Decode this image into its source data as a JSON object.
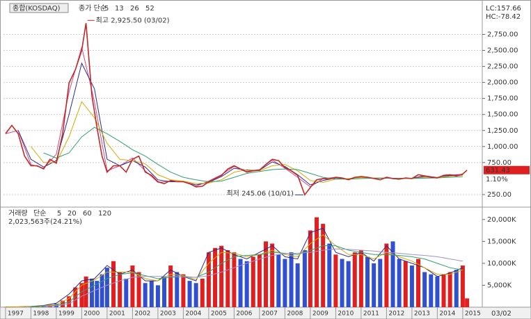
{
  "chart_data": [
    {
      "type": "line",
      "title": "종합(KOSDAQ)",
      "color": "#c02828",
      "lc": "LC:157.66",
      "hc": "HC:-78.42",
      "change": "1.10%",
      "high_label": "최고 2,925.50 (03/02)",
      "low_label": "최저 245.06 (10/01)",
      "x": [
        1997.0,
        1997.25,
        1997.5,
        1997.75,
        1998.0,
        1998.25,
        1998.5,
        1998.75,
        1999.0,
        1999.25,
        1999.5,
        1999.75,
        2000.0,
        2000.17,
        2000.4,
        2000.6,
        2000.8,
        2001.0,
        2001.25,
        2001.5,
        2001.75,
        2002.0,
        2002.25,
        2002.5,
        2002.75,
        2003.0,
        2003.25,
        2003.5,
        2003.75,
        2004.0,
        2004.25,
        2004.5,
        2004.75,
        2005.0,
        2005.25,
        2005.5,
        2005.75,
        2006.0,
        2006.25,
        2006.5,
        2006.75,
        2007.0,
        2007.25,
        2007.5,
        2007.75,
        2008.0,
        2008.25,
        2008.5,
        2008.78,
        2009.0,
        2009.25,
        2009.5,
        2009.75,
        2010.0,
        2010.25,
        2010.5,
        2010.75,
        2011.0,
        2011.25,
        2011.5,
        2011.75,
        2012.0,
        2012.25,
        2012.5,
        2012.75,
        2013.0,
        2013.25,
        2013.5,
        2013.75,
        2014.0,
        2014.25,
        2014.5,
        2014.75,
        2015.0,
        2015.17
      ],
      "values": [
        1200,
        1330,
        1200,
        850,
        700,
        700,
        650,
        800,
        740,
        1200,
        1990,
        2200,
        2500,
        2925.5,
        1800,
        1300,
        850,
        600,
        700,
        700,
        600,
        800,
        850,
        600,
        550,
        450,
        420,
        470,
        450,
        450,
        420,
        370,
        380,
        450,
        500,
        550,
        650,
        700,
        650,
        600,
        620,
        630,
        720,
        800,
        780,
        670,
        620,
        550,
        245.06,
        360,
        480,
        500,
        490,
        520,
        510,
        480,
        520,
        530,
        520,
        500,
        480,
        520,
        500,
        490,
        510,
        500,
        560,
        540,
        520,
        510,
        550,
        560,
        540,
        570,
        631.43
      ],
      "ylim": [
        65,
        3200
      ],
      "yticks": [
        {
          "value": 250,
          "label": "250.00"
        },
        {
          "value": 750,
          "label": "750.00"
        },
        {
          "value": 1000,
          "label": "1,000.00"
        },
        {
          "value": 1250,
          "label": "1,250.00"
        },
        {
          "value": 1500,
          "label": "1,500.00"
        },
        {
          "value": 1750,
          "label": "1,750.00"
        },
        {
          "value": 2000,
          "label": "2,000.00"
        },
        {
          "value": 2250,
          "label": "2,250.00"
        },
        {
          "value": 2500,
          "label": "2,500.00"
        },
        {
          "value": 2750,
          "label": "2,750.00"
        }
      ],
      "grid": true,
      "ma": {
        "label": "종가 단순",
        "x": [
          1997.0,
          1997.5,
          1998.0,
          1998.5,
          1999.0,
          1999.5,
          2000.0,
          2000.5,
          2001.0,
          2001.5,
          2002.0,
          2002.5,
          2003.0,
          2003.5,
          2004.0,
          2004.5,
          2005.0,
          2005.5,
          2006.0,
          2006.5,
          2007.0,
          2007.5,
          2008.0,
          2008.5,
          2009.0,
          2009.5,
          2010.0,
          2010.5,
          2011.0,
          2011.5,
          2012.0,
          2012.5,
          2013.0,
          2013.5,
          2014.0,
          2014.5,
          2015.0
        ],
        "series": [
          {
            "name": "5",
            "color": "#d04888",
            "values": [
              1200,
              1250,
              720,
              660,
              880,
              1850,
              2550,
              1700,
              620,
              700,
              820,
              620,
              440,
              460,
              450,
              380,
              460,
              560,
              690,
              610,
              640,
              790,
              660,
              520,
              370,
              500,
              520,
              490,
              530,
              500,
              510,
              495,
              505,
              545,
              515,
              555,
              565
            ]
          },
          {
            "name": "13",
            "color": "#2a2a90",
            "values": [
              null,
              1250,
              800,
              680,
              780,
              1500,
              2300,
              1900,
              800,
              700,
              780,
              680,
              480,
              450,
              450,
              400,
              440,
              530,
              660,
              630,
              630,
              760,
              690,
              560,
              400,
              470,
              510,
              495,
              525,
              505,
              505,
              500,
              505,
              535,
              520,
              545,
              560
            ]
          },
          {
            "name": "26",
            "color": "#d8a800",
            "values": [
              null,
              null,
              1000,
              750,
              750,
              1150,
              1700,
              1450,
              1050,
              800,
              780,
              730,
              560,
              480,
              460,
              420,
              430,
              480,
              600,
              640,
              620,
              700,
              720,
              620,
              470,
              440,
              490,
              500,
              515,
              510,
              505,
              500,
              500,
              520,
              520,
              535,
              550
            ]
          },
          {
            "name": "52",
            "color": "#30a070",
            "values": [
              null,
              null,
              null,
              900,
              820,
              900,
              1150,
              1300,
              1200,
              1080,
              950,
              850,
              720,
              600,
              520,
              480,
              450,
              460,
              520,
              580,
              610,
              640,
              650,
              640,
              580,
              520,
              490,
              490,
              500,
              505,
              505,
              505,
              500,
              505,
              510,
              520,
              530
            ]
          }
        ]
      }
    },
    {
      "type": "bar",
      "title": "거래량",
      "info": "2,023,563주(24.21%)",
      "cursor_date": "03/02",
      "up_color": "#e02020",
      "down_color": "#3050d0",
      "x": [
        1997.0,
        1997.25,
        1997.5,
        1997.75,
        1998.0,
        1998.25,
        1998.5,
        1998.75,
        1999.0,
        1999.25,
        1999.5,
        1999.75,
        2000.0,
        2000.17,
        2000.4,
        2000.6,
        2000.8,
        2001.0,
        2001.25,
        2001.5,
        2001.75,
        2002.0,
        2002.25,
        2002.5,
        2002.75,
        2003.0,
        2003.25,
        2003.5,
        2003.75,
        2004.0,
        2004.25,
        2004.5,
        2004.75,
        2005.0,
        2005.25,
        2005.5,
        2005.75,
        2006.0,
        2006.25,
        2006.5,
        2006.75,
        2007.0,
        2007.25,
        2007.5,
        2007.75,
        2008.0,
        2008.25,
        2008.5,
        2008.78,
        2009.0,
        2009.25,
        2009.5,
        2009.75,
        2010.0,
        2010.25,
        2010.5,
        2010.75,
        2011.0,
        2011.25,
        2011.5,
        2011.75,
        2012.0,
        2012.25,
        2012.5,
        2012.75,
        2013.0,
        2013.25,
        2013.5,
        2013.75,
        2014.0,
        2014.25,
        2014.5,
        2014.75,
        2015.0,
        2015.17
      ],
      "values": [
        50,
        60,
        80,
        100,
        150,
        200,
        300,
        500,
        800,
        1500,
        2500,
        4500,
        5500,
        7000,
        6500,
        6000,
        7500,
        9000,
        10500,
        8000,
        6500,
        9500,
        8000,
        5500,
        6000,
        5000,
        7000,
        9500,
        8000,
        7500,
        6000,
        5500,
        6500,
        12500,
        13500,
        14000,
        13000,
        12500,
        11000,
        10500,
        11500,
        12000,
        15000,
        14500,
        12000,
        11000,
        12500,
        10000,
        13000,
        17500,
        20500,
        19000,
        14500,
        12000,
        11000,
        10500,
        12500,
        13000,
        11500,
        10000,
        11000,
        14500,
        15000,
        11000,
        10500,
        9500,
        11000,
        8000,
        7500,
        7000,
        7500,
        8000,
        8500,
        9500,
        2000
      ],
      "xlim": [
        1996.92,
        2015.77
      ],
      "xticks": [
        1997,
        1998,
        1999,
        2000,
        2001,
        2002,
        2003,
        2004,
        2005,
        2006,
        2007,
        2008,
        2009,
        2010,
        2011,
        2012,
        2013,
        2014,
        2015
      ],
      "ylim": [
        0,
        22500
      ],
      "yticks": [
        {
          "value": 5000,
          "label": "5,000K"
        },
        {
          "value": 10000,
          "label": "10,000K"
        },
        {
          "value": 15000,
          "label": "15,000K"
        },
        {
          "value": 20000,
          "label": "20,000K"
        }
      ],
      "ma": {
        "label": "단순",
        "x": [
          1997.0,
          1997.5,
          1998.0,
          1998.5,
          1999.0,
          1999.5,
          2000.0,
          2000.5,
          2001.0,
          2001.5,
          2002.0,
          2002.5,
          2003.0,
          2003.5,
          2004.0,
          2004.5,
          2005.0,
          2005.5,
          2006.0,
          2006.5,
          2007.0,
          2007.5,
          2008.0,
          2008.5,
          2009.0,
          2009.5,
          2010.0,
          2010.5,
          2011.0,
          2011.5,
          2012.0,
          2012.5,
          2013.0,
          2013.5,
          2014.0,
          2014.5,
          2015.0
        ],
        "series": [
          {
            "name": "5",
            "color": "#2a2a90",
            "values": [
              60,
              90,
              180,
              400,
              900,
              3000,
              6000,
              6500,
              9500,
              7500,
              8500,
              6000,
              6000,
              8500,
              7000,
              6000,
              12500,
              13500,
              12000,
              11000,
              12500,
              14000,
              11500,
              11000,
              17000,
              18000,
              12500,
              11500,
              12500,
              10500,
              14000,
              11000,
              10000,
              9000,
              7000,
              7800,
              9000
            ]
          },
          {
            "name": "20",
            "color": "#d8a800",
            "values": [
              50,
              80,
              150,
              300,
              600,
              2000,
              5000,
              6200,
              8000,
              8000,
              8000,
              6500,
              6000,
              7500,
              7200,
              6300,
              10000,
              12500,
              12300,
              11500,
              12000,
              13000,
              12000,
              11500,
              14500,
              16500,
              14000,
              12000,
              12000,
              11000,
              12500,
              11500,
              10500,
              9000,
              7500,
              7500,
              8500
            ]
          },
          {
            "name": "60",
            "color": "#30a070",
            "values": [
              null,
              null,
              100,
              200,
              400,
              1200,
              3500,
              5000,
              6500,
              7500,
              7800,
              7200,
              6500,
              6800,
              7000,
              6800,
              8000,
              10000,
              11500,
              11800,
              12000,
              12500,
              12300,
              12000,
              13000,
              14000,
              14000,
              13000,
              12500,
              12000,
              12000,
              11800,
              11500,
              11000,
              10000,
              9000,
              8500
            ]
          },
          {
            "name": "120",
            "color": "#a090d0",
            "values": [
              null,
              null,
              null,
              150,
              300,
              800,
              2500,
              3800,
              5000,
              6000,
              6800,
              7000,
              7000,
              7000,
              6900,
              6800,
              7200,
              8000,
              9000,
              10000,
              11000,
              11800,
              12200,
              12300,
              12500,
              13000,
              13300,
              13200,
              13000,
              12800,
              12500,
              12300,
              12000,
              11800,
              11500,
              11000,
              10500
            ]
          }
        ]
      }
    }
  ]
}
